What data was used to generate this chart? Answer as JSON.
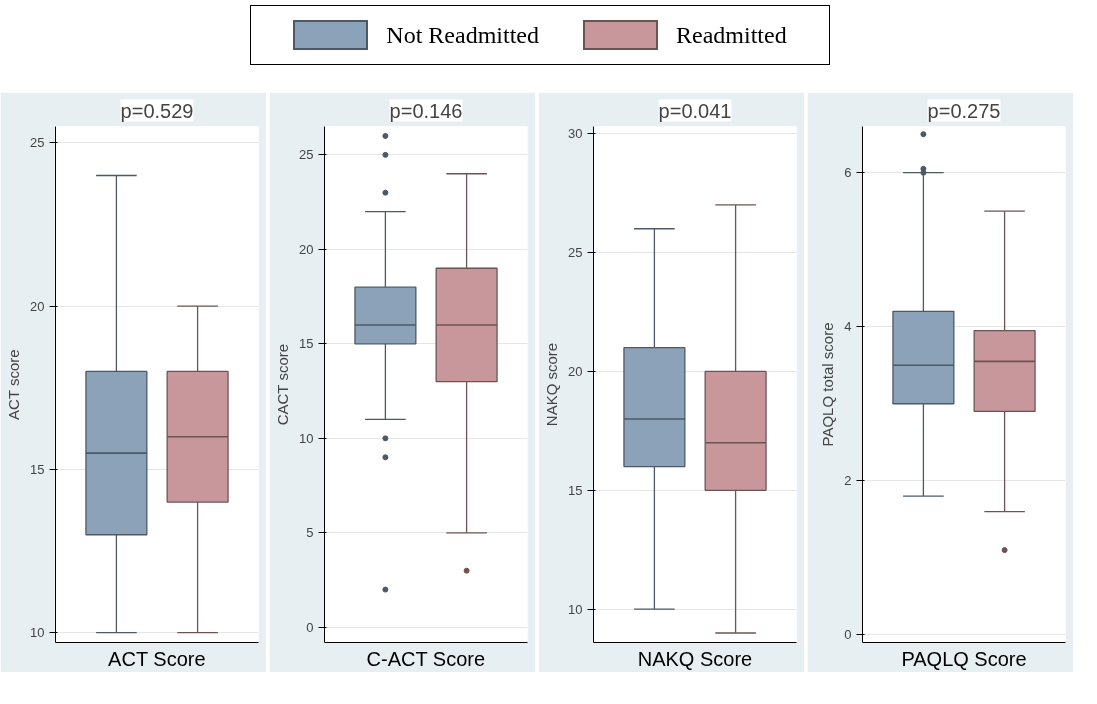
{
  "chart_data": [
    {
      "type": "box",
      "title": "p=0.529",
      "ylabel": "ACT score",
      "xlabel": "ACT Score",
      "categories": [
        null
      ],
      "ylim": [
        9.7,
        25.5
      ],
      "yticks": [
        10,
        15,
        20,
        25
      ],
      "grid": "y",
      "legend": "top",
      "series": [
        {
          "name": "Not Readmitted",
          "color": "#8ca2b8",
          "boxes": [
            {
              "low": 10,
              "q1": 13,
              "median": 15.5,
              "q3": 18,
              "high": 24
            }
          ]
        },
        {
          "name": "Readmitted",
          "color": "#c8979c",
          "boxes": [
            {
              "low": 10,
              "q1": 14,
              "median": 16,
              "q3": 18,
              "high": 20
            }
          ]
        }
      ]
    },
    {
      "type": "box",
      "title": "p=0.146",
      "ylabel": "CACT score",
      "xlabel": "C-ACT Score",
      "categories": [
        null
      ],
      "ylim": [
        -0.8,
        26.5
      ],
      "yticks": [
        0,
        5,
        10,
        15,
        20,
        25
      ],
      "grid": "y",
      "series": [
        {
          "color": "#8ca2b8",
          "boxes": [
            {
              "low": 11,
              "q1": 15,
              "median": 16,
              "q3": 18,
              "high": 22,
              "outliers": [
                26,
                25,
                23,
                10,
                9,
                2
              ]
            }
          ]
        },
        {
          "color": "#c8979c",
          "boxes": [
            {
              "low": 5,
              "q1": 13,
              "median": 16,
              "q3": 19,
              "high": 24,
              "outliers": [
                3
              ]
            }
          ]
        }
      ]
    },
    {
      "type": "box",
      "title": "p=0.041",
      "ylabel": "NAKQ score",
      "xlabel": "NAKQ Score",
      "categories": [
        null
      ],
      "ylim": [
        8.6,
        30.3
      ],
      "yticks": [
        10,
        15,
        20,
        25,
        30
      ],
      "grid": "y",
      "series": [
        {
          "color": "#8ca2b8",
          "boxes": [
            {
              "low": 10,
              "q1": 16,
              "median": 18,
              "q3": 21,
              "high": 26
            }
          ]
        },
        {
          "color": "#c8979c",
          "boxes": [
            {
              "low": 9,
              "q1": 15,
              "median": 17,
              "q3": 20,
              "high": 27
            }
          ]
        }
      ]
    },
    {
      "type": "box",
      "title": "p=0.275",
      "ylabel": "PAQLQ total score",
      "xlabel": "PAQLQ Score",
      "categories": [
        null
      ],
      "ylim": [
        -0.1,
        6.6
      ],
      "yticks": [
        0,
        2,
        4,
        6
      ],
      "grid": "y",
      "series": [
        {
          "color": "#8ca2b8",
          "boxes": [
            {
              "low": 1.8,
              "q1": 3.0,
              "median": 3.5,
              "q3": 4.2,
              "high": 6.0,
              "outliers": [
                6.5,
                6.05,
                6.0
              ]
            }
          ]
        },
        {
          "color": "#c8979c",
          "boxes": [
            {
              "low": 1.6,
              "q1": 2.9,
              "median": 3.55,
              "q3": 3.95,
              "high": 5.5,
              "outliers": [
                1.1
              ]
            }
          ]
        }
      ]
    }
  ]
}
